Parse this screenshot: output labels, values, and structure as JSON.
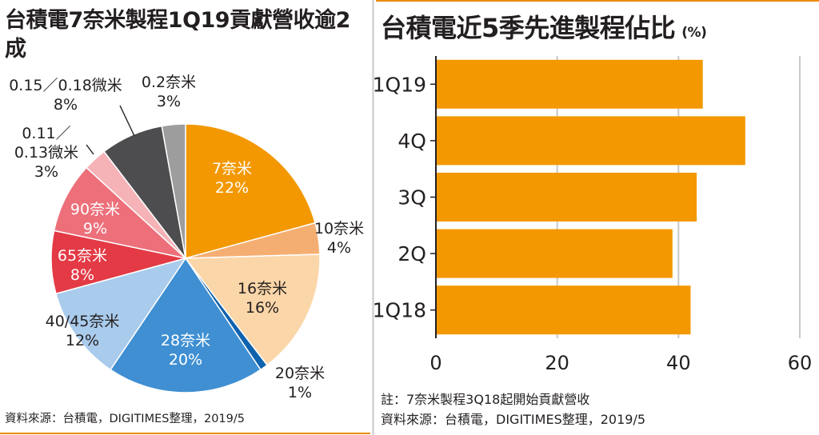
{
  "left": {
    "title": "台積電7奈米製程1Q19貢獻營收逾2成",
    "source": "資料來源：台積電，DIGITIMES整理，2019/5"
  },
  "right": {
    "title": "台積電近5季先進製程佔比",
    "unit": "(%)",
    "note": "註：7奈米製程3Q18起開始貢獻營收",
    "source": "資料來源：台積電，DIGITIMES整理，2019/5"
  },
  "colors": {
    "accent": "#f39800",
    "divider": "#d9d9d9"
  },
  "chart_data": [
    {
      "type": "pie",
      "title": "台積電7奈米製程1Q19貢獻營收逾2成",
      "slices": [
        {
          "label": "7奈米",
          "pct_text": "22%",
          "value": 22,
          "color": "#f39800"
        },
        {
          "label": "10奈米",
          "pct_text": "4%",
          "value": 4,
          "color": "#f5ae72"
        },
        {
          "label": "16奈米",
          "pct_text": "16%",
          "value": 16,
          "color": "#fbd6a8"
        },
        {
          "label": "20奈米",
          "pct_text": "1%",
          "value": 1,
          "color": "#0f62ad"
        },
        {
          "label": "28奈米",
          "pct_text": "20%",
          "value": 20,
          "color": "#3f8fd2"
        },
        {
          "label": "40/45奈米",
          "pct_text": "12%",
          "value": 12,
          "color": "#a9cbec"
        },
        {
          "label": "65奈米",
          "pct_text": "8%",
          "value": 8,
          "color": "#e33a45"
        },
        {
          "label": "90奈米",
          "pct_text": "9%",
          "value": 9,
          "color": "#ec6f7a"
        },
        {
          "label": "0.11／0.13微米",
          "pct_text": "3%",
          "value": 3,
          "color": "#f5b3b8"
        },
        {
          "label": "0.15／0.18微米",
          "pct_text": "8%",
          "value": 8,
          "color": "#4d4d4f"
        },
        {
          "label": "0.2奈米",
          "pct_text": "3%",
          "value": 3,
          "color": "#9d9d9d"
        }
      ]
    },
    {
      "type": "bar",
      "orientation": "horizontal",
      "title": "台積電近5季先進製程佔比",
      "unit": "(%)",
      "categories": [
        "1Q19",
        "4Q",
        "3Q",
        "2Q",
        "1Q18"
      ],
      "values": [
        44,
        51,
        43,
        39,
        42
      ],
      "xlim": [
        0,
        60
      ],
      "xticks": [
        0,
        20,
        40,
        60
      ],
      "grid": true,
      "color": "#f39800"
    }
  ]
}
